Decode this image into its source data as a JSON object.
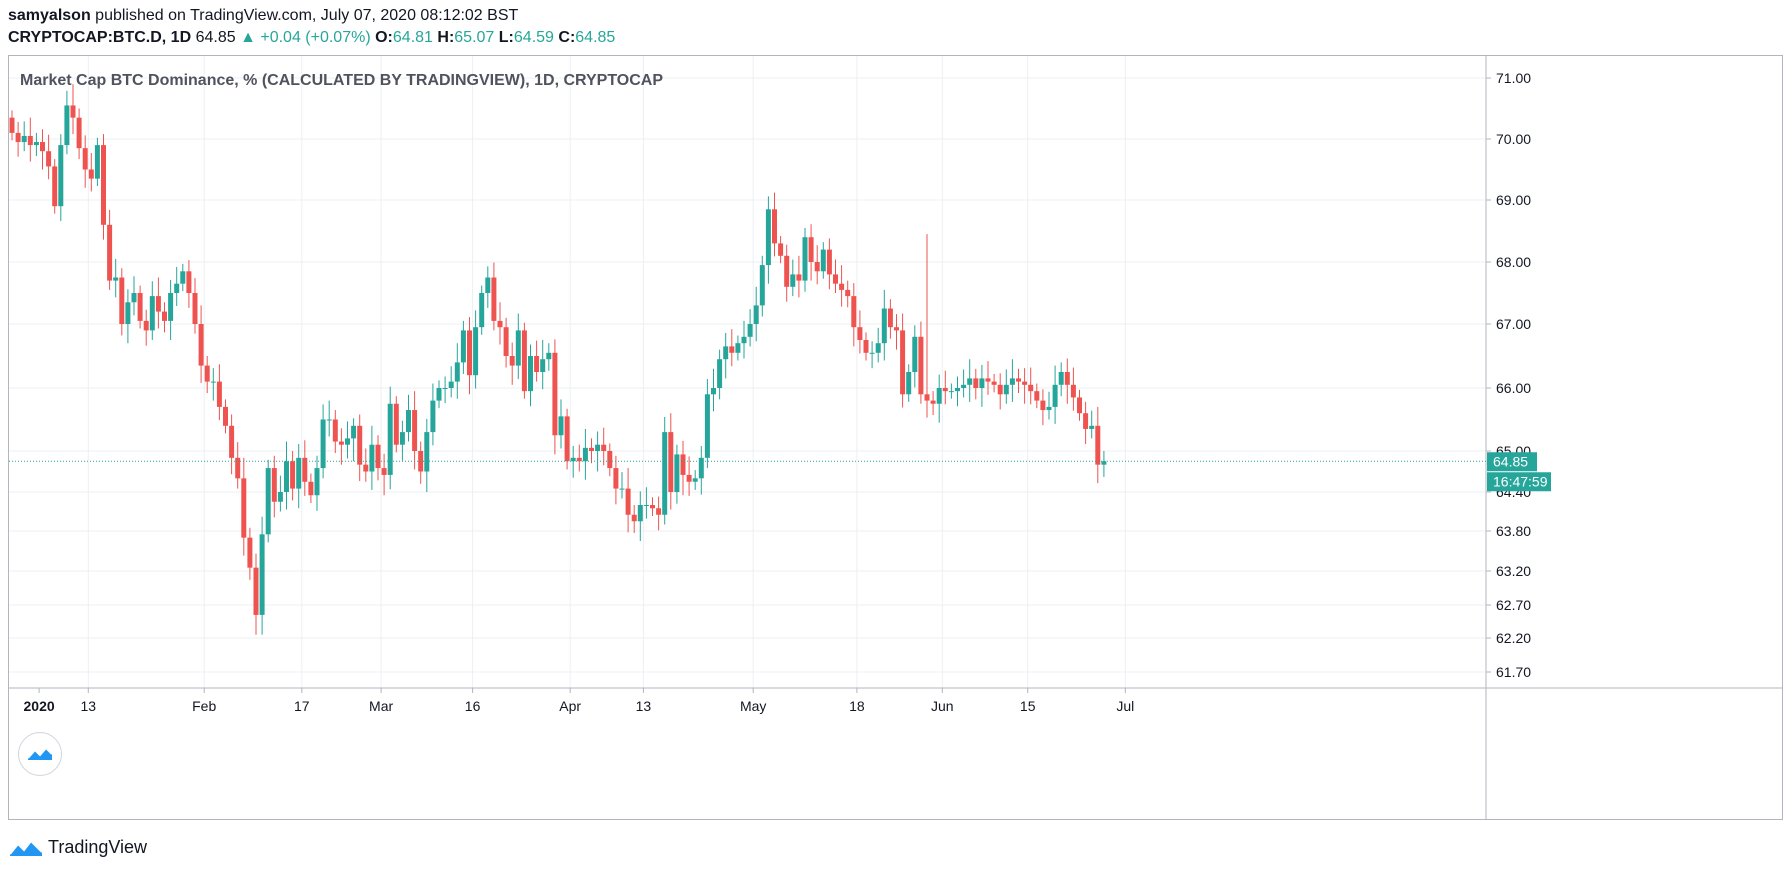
{
  "header": {
    "author": "samyalson",
    "published": "published on TradingView.com, July 07, 2020 08:12:02 BST",
    "symbol": "CRYPTOCAP:BTC.D, 1D",
    "last": "64.85",
    "change": "▲ +0.04 (+0.07%)",
    "o_label": "O:",
    "o_value": "64.81",
    "h_label": "H:",
    "h_value": "65.07",
    "l_label": "L:",
    "l_value": "64.59",
    "c_label": "C:",
    "c_value": "64.85"
  },
  "legend_title": "Market Cap BTC Dominance, % (CALCULATED BY TRADINGVIEW), 1D, CRYPTOCAP",
  "footer": {
    "brand": "TradingView"
  },
  "colors": {
    "up": "#26a69a",
    "down": "#ef5350",
    "grid": "#eceff3",
    "axis_text": "#131722",
    "price_label_bg": "#26a69a"
  },
  "chart_data": {
    "type": "candlestick",
    "y_ticks": [
      "71.00",
      "70.00",
      "69.00",
      "68.00",
      "67.00",
      "66.00",
      "65.00",
      "64.40",
      "63.80",
      "63.20",
      "62.70",
      "62.20",
      "61.70"
    ],
    "y_tick_values": [
      71.0,
      70.0,
      69.0,
      68.0,
      67.0,
      66.0,
      65.0,
      64.4,
      63.8,
      63.2,
      62.7,
      62.2,
      61.7
    ],
    "x_ticks": [
      {
        "label": "2020",
        "date": "2020-01-01",
        "bold": true
      },
      {
        "label": "13",
        "date": "2020-01-13"
      },
      {
        "label": "Feb",
        "date": "2020-02-01"
      },
      {
        "label": "17",
        "date": "2020-02-17"
      },
      {
        "label": "Mar",
        "date": "2020-03-01"
      },
      {
        "label": "16",
        "date": "2020-03-16"
      },
      {
        "label": "Apr",
        "date": "2020-04-01"
      },
      {
        "label": "13",
        "date": "2020-04-13"
      },
      {
        "label": "May",
        "date": "2020-05-01"
      },
      {
        "label": "18",
        "date": "2020-05-18"
      },
      {
        "label": "Jun",
        "date": "2020-06-01"
      },
      {
        "label": "15",
        "date": "2020-06-15"
      },
      {
        "label": "Jul",
        "date": "2020-07-01"
      }
    ],
    "last_price_label": "64.85",
    "last_price": 64.85,
    "countdown_label": "16:47:59",
    "start_date": "2019-12-31",
    "closes": [
      70.1,
      69.95,
      70.05,
      69.9,
      69.95,
      69.8,
      69.55,
      68.9,
      69.9,
      70.55,
      70.35,
      69.85,
      69.5,
      69.35,
      69.9,
      68.6,
      67.7,
      67.75,
      67.0,
      67.35,
      67.5,
      67.05,
      66.9,
      67.45,
      67.2,
      67.05,
      67.5,
      67.65,
      67.85,
      67.5,
      67.0,
      66.35,
      66.1,
      66.1,
      65.7,
      65.4,
      64.9,
      64.6,
      63.7,
      63.25,
      62.55,
      63.75,
      64.75,
      64.25,
      64.4,
      64.85,
      64.45,
      64.9,
      64.55,
      64.35,
      64.75,
      65.5,
      65.5,
      65.15,
      65.1,
      65.2,
      65.4,
      64.8,
      64.7,
      65.1,
      64.75,
      64.65,
      65.75,
      65.1,
      65.3,
      65.65,
      65.0,
      64.7,
      65.3,
      65.8,
      66.0,
      66.0,
      66.1,
      66.4,
      66.9,
      66.2,
      66.95,
      67.5,
      67.75,
      67.05,
      66.95,
      66.5,
      66.35,
      66.9,
      65.95,
      66.5,
      66.25,
      66.45,
      66.55,
      65.25,
      65.55,
      64.85,
      64.9,
      64.85,
      65.05,
      65.0,
      65.1,
      65.0,
      64.75,
      64.45,
      64.45,
      64.05,
      63.95,
      64.2,
      64.2,
      64.15,
      64.05,
      65.3,
      64.4,
      64.95,
      64.65,
      64.55,
      64.6,
      64.9,
      65.9,
      66.0,
      66.45,
      66.65,
      66.55,
      66.7,
      66.8,
      67.0,
      67.3,
      67.95,
      68.85,
      68.3,
      68.1,
      67.6,
      67.8,
      67.7,
      68.4,
      68.0,
      67.85,
      68.2,
      67.8,
      67.65,
      67.55,
      67.45,
      66.95,
      66.75,
      66.55,
      66.55,
      66.7,
      67.25,
      66.95,
      66.9,
      65.9,
      66.25,
      66.8,
      65.9,
      65.8,
      65.75,
      66.0,
      65.95,
      65.95,
      66.0,
      66.05,
      66.15,
      66.0,
      66.15,
      66.1,
      66.05,
      65.9,
      66.05,
      66.15,
      66.1,
      66.05,
      65.95,
      65.8,
      65.65,
      65.7,
      66.05,
      66.25,
      66.05,
      65.85,
      65.6,
      65.35,
      65.4,
      64.8,
      64.85
    ],
    "opens_first": 70.35,
    "highs_extra": {
      "93": 0.2,
      "150": 2.55,
      "120": 0.25,
      "10": 0.35
    },
    "lows_extra": {
      "41": 0.3,
      "40": 0.3,
      "56": 0.35
    }
  }
}
